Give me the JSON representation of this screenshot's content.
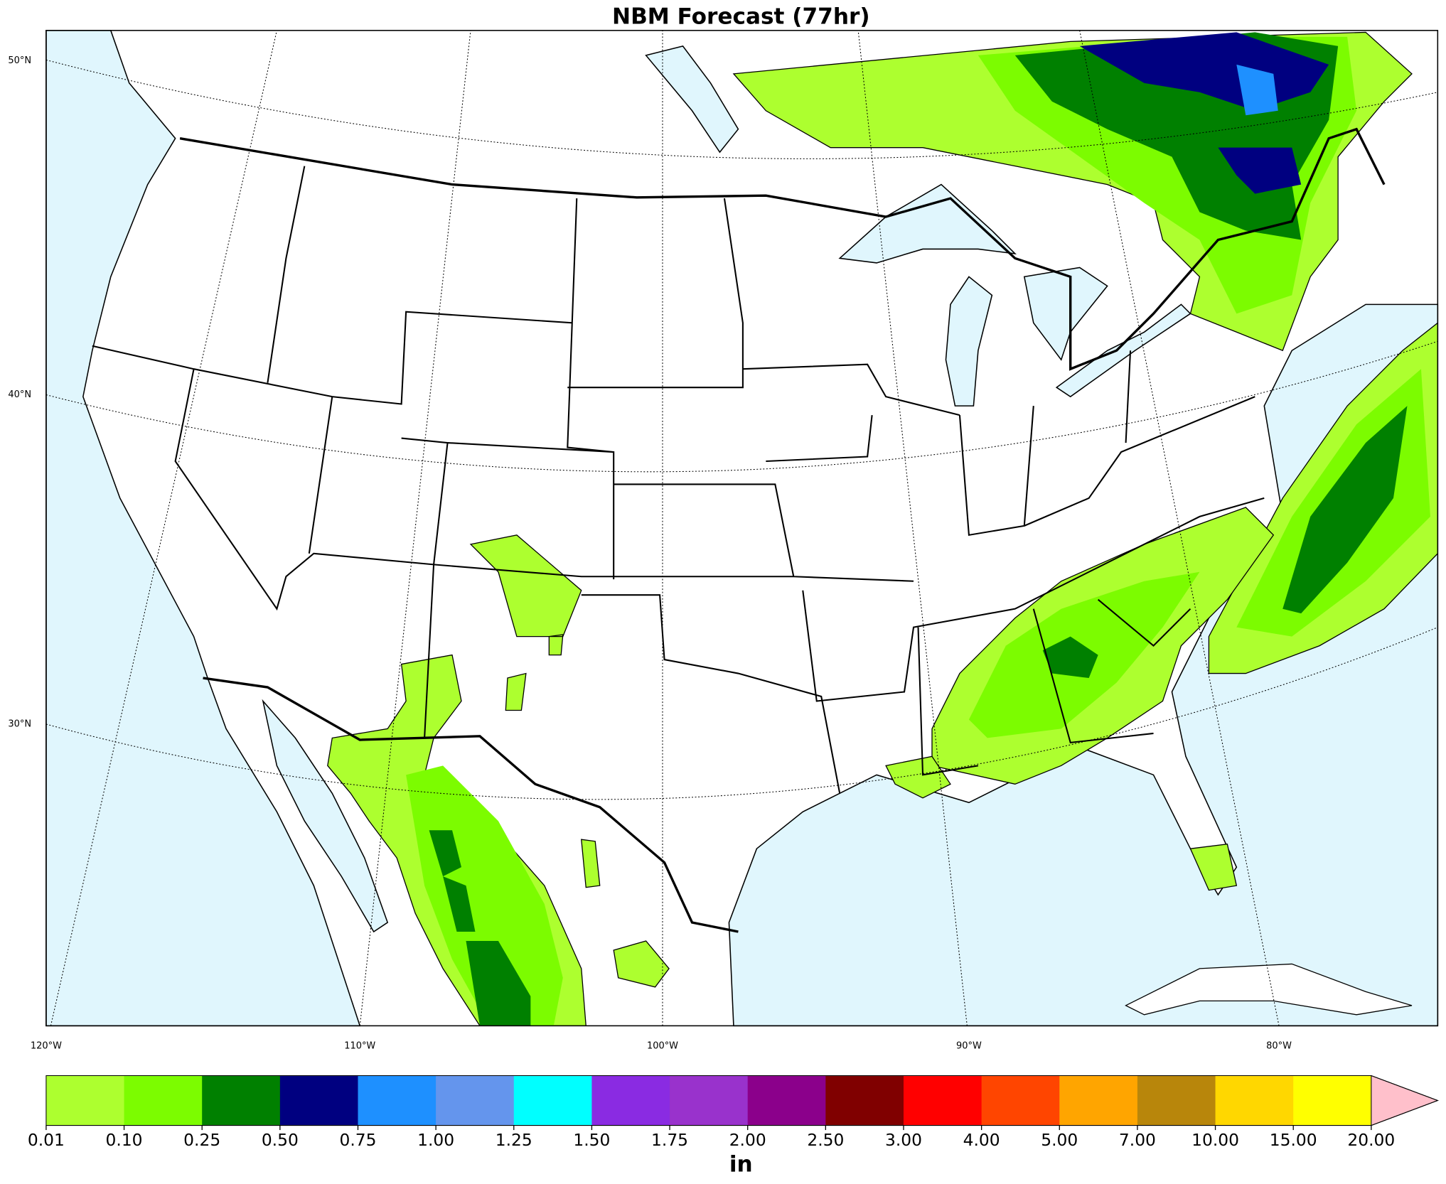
{
  "title": "NBM Forecast (77hr)",
  "map": {
    "lat_labels": [
      "50°N",
      "40°N",
      "30°N"
    ],
    "lon_labels": [
      "120°W",
      "110°W",
      "100°W",
      "90°W",
      "80°W"
    ]
  },
  "colorbar": {
    "colors": [
      "#adff2f",
      "#7cfc00",
      "#008000",
      "#000080",
      "#1e90ff",
      "#6495ed",
      "#00ffff",
      "#8a2be2",
      "#9932cc",
      "#8b008b",
      "#800000",
      "#ff0000",
      "#ff4500",
      "#ffa500",
      "#b8860b",
      "#ffd700",
      "#ffff00"
    ],
    "extend_color": "#ffc0cb",
    "ticks": [
      {
        "value": 0.01,
        "label": "0.01"
      },
      {
        "value": 0.1,
        "label": "0.10"
      },
      0.25,
      {
        "value": 0.5,
        "label": "0.50"
      },
      0.75,
      {
        "value": 1,
        "label": "1.00"
      },
      1.25,
      {
        "value": 1.5,
        "label": "1.50"
      },
      1.75,
      {
        "value": 2,
        "label": "2.00"
      },
      {
        "value": 2.5,
        "label": "2.50"
      },
      {
        "value": 3,
        "label": "3.00"
      },
      {
        "value": 4,
        "label": "4.00"
      },
      {
        "value": 5,
        "label": "5.00"
      },
      {
        "value": 7,
        "label": "7.00"
      },
      {
        "value": 10,
        "label": "10.00"
      },
      {
        "value": 15,
        "label": "15.00"
      },
      {
        "value": 20,
        "label": "20.00"
      }
    ],
    "label": "in"
  }
}
